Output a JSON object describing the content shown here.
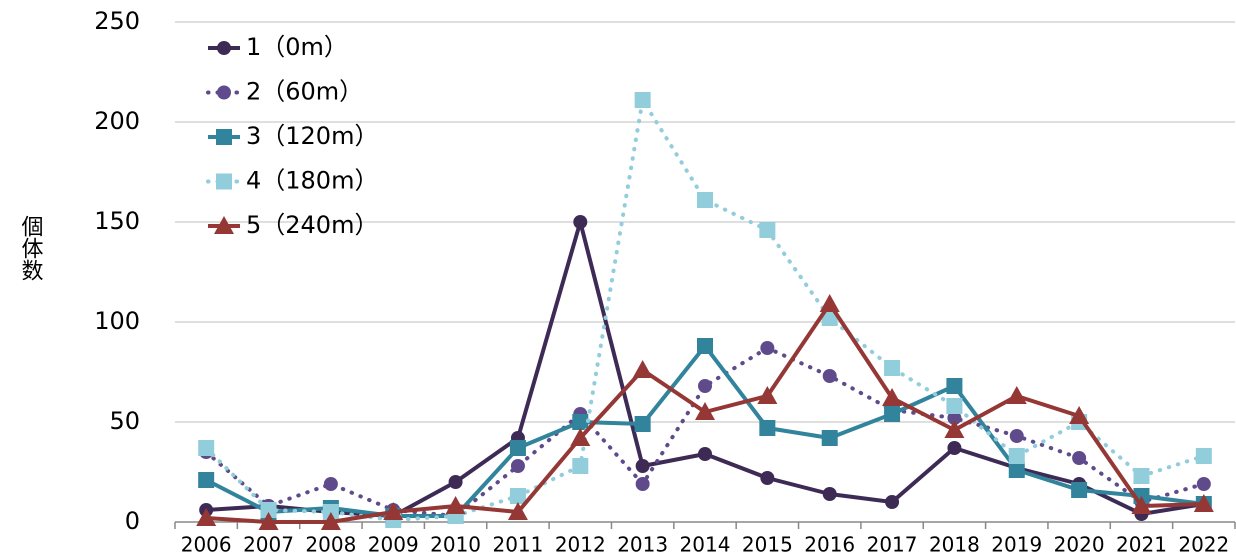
{
  "chart_data": {
    "type": "line",
    "y_label": "個体数",
    "categories": [
      "2006",
      "2007",
      "2008",
      "2009",
      "2010",
      "2011",
      "2012",
      "2013",
      "2014",
      "2015",
      "2016",
      "2017",
      "2018",
      "2019",
      "2020",
      "2021",
      "2022"
    ],
    "ylim": [
      0,
      250
    ],
    "yticks": [
      0,
      50,
      100,
      150,
      200,
      250
    ],
    "grid": true,
    "legend": "upper-left",
    "series": [
      {
        "name": "1（0m）",
        "color": "#3d2b56",
        "line_style": "solid",
        "marker": "circle",
        "values": [
          6,
          8,
          5,
          3,
          20,
          42,
          150,
          28,
          34,
          22,
          14,
          10,
          37,
          27,
          19,
          4,
          9
        ]
      },
      {
        "name": "2（60m）",
        "color": "#5f4b8b",
        "line_style": "dotted",
        "marker": "circle",
        "values": [
          35,
          8,
          19,
          6,
          3,
          28,
          54,
          19,
          68,
          87,
          73,
          56,
          52,
          43,
          32,
          10,
          19
        ]
      },
      {
        "name": "3（120m）",
        "color": "#31849b",
        "line_style": "solid",
        "marker": "square",
        "values": [
          21,
          5,
          7,
          3,
          3,
          37,
          50,
          49,
          88,
          47,
          42,
          54,
          68,
          26,
          16,
          13,
          9
        ]
      },
      {
        "name": "4（180m）",
        "color": "#92cddc",
        "line_style": "dotted",
        "marker": "square",
        "values": [
          37,
          6,
          5,
          1,
          3,
          13,
          28,
          211,
          161,
          146,
          102,
          77,
          58,
          33,
          50,
          23,
          33
        ]
      },
      {
        "name": "5（240m）",
        "color": "#953735",
        "line_style": "solid",
        "marker": "triangle",
        "values": [
          2,
          0,
          0,
          5,
          8,
          5,
          42,
          76,
          55,
          63,
          109,
          62,
          46,
          63,
          53,
          8,
          9
        ]
      }
    ]
  }
}
